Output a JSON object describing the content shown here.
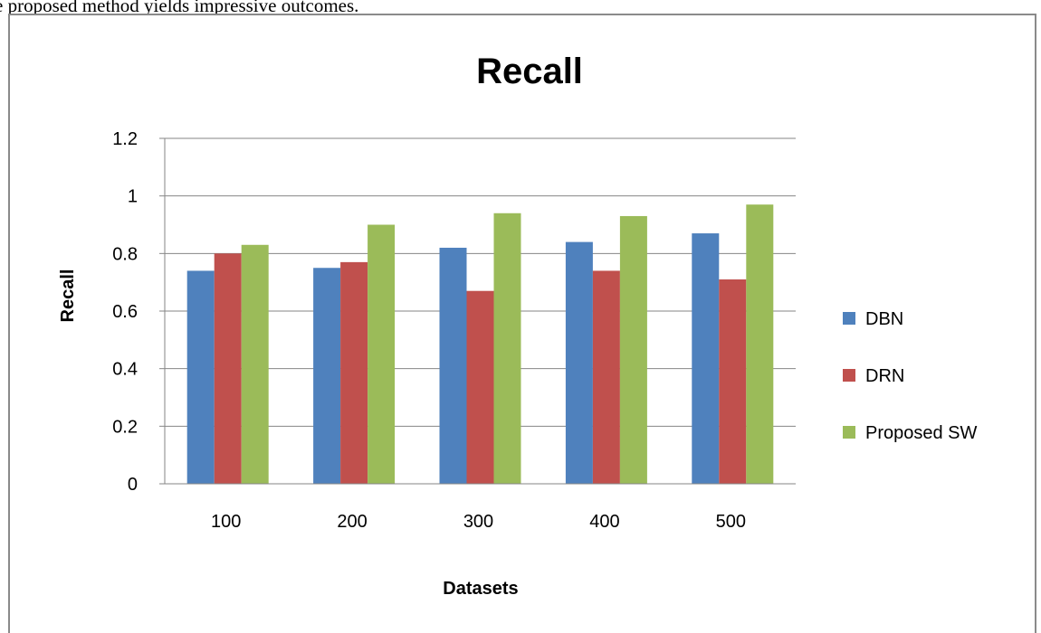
{
  "caption": "e proposed method yields impressive outcomes.",
  "chart_data": {
    "type": "bar",
    "title": "Recall",
    "xlabel": "Datasets",
    "ylabel": "Recall",
    "categories": [
      "100",
      "200",
      "300",
      "400",
      "500"
    ],
    "ylim": [
      0,
      1.2
    ],
    "yticks": [
      "0",
      "0.2",
      "0.4",
      "0.6",
      "0.8",
      "1",
      "1.2"
    ],
    "grid": true,
    "legend_position": "right",
    "series": [
      {
        "name": "DBN",
        "color": "#4f81bd",
        "values": [
          0.74,
          0.75,
          0.82,
          0.84,
          0.87
        ]
      },
      {
        "name": "DRN",
        "color": "#c0504d",
        "values": [
          0.8,
          0.77,
          0.67,
          0.74,
          0.71
        ]
      },
      {
        "name": "Proposed SW",
        "color": "#9bbb59",
        "values": [
          0.83,
          0.9,
          0.94,
          0.93,
          0.97
        ]
      }
    ]
  }
}
